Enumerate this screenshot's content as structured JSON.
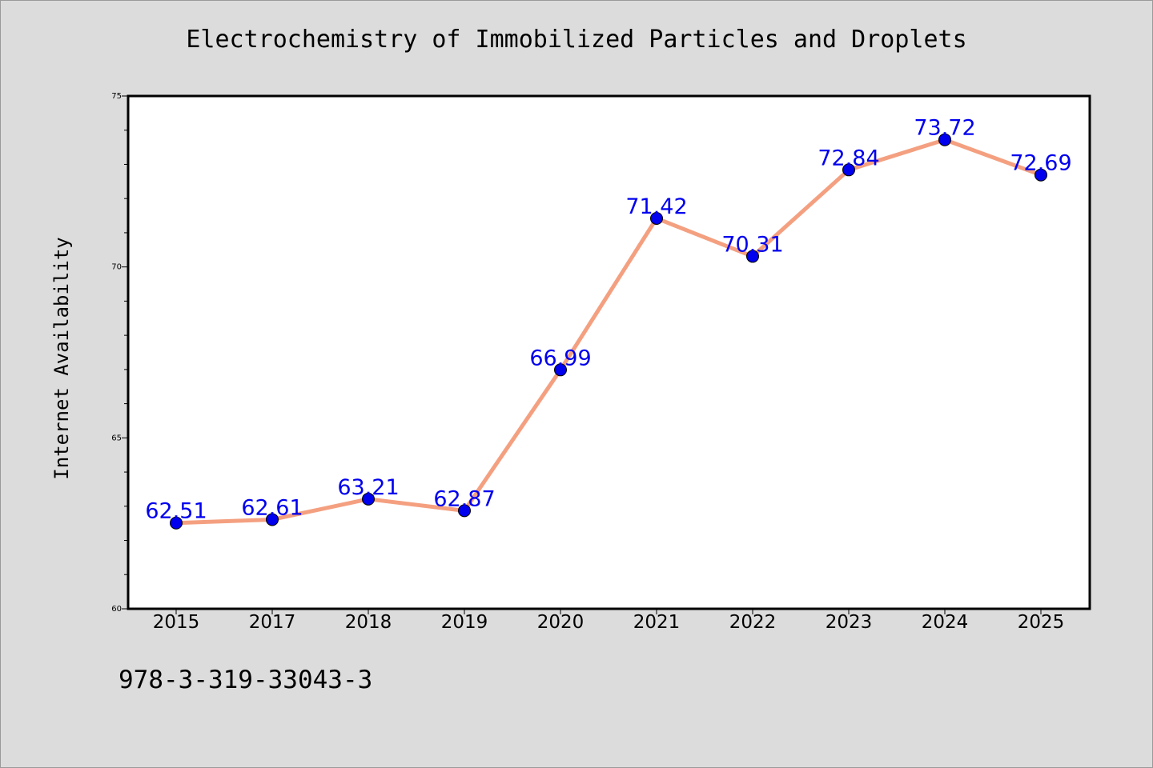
{
  "chart_data": {
    "type": "line",
    "title": "Electrochemistry of Immobilized Particles and Droplets",
    "xlabel": "",
    "ylabel": "Internet Availability",
    "categories": [
      "2015",
      "2017",
      "2018",
      "2019",
      "2020",
      "2021",
      "2022",
      "2023",
      "2024",
      "2025"
    ],
    "values": [
      62.51,
      62.61,
      63.21,
      62.87,
      66.99,
      71.42,
      70.31,
      72.84,
      73.72,
      72.69
    ],
    "value_labels": [
      "62.51",
      "62.61",
      "63.21",
      "62.87",
      "66.99",
      "71.42",
      "70.31",
      "72.84",
      "73.72",
      "72.69"
    ],
    "ylim": [
      60,
      75
    ],
    "yticks": [
      "60",
      "65",
      "70",
      "75"
    ],
    "grid": false,
    "line_color": "#f4a080",
    "marker_color": "#0000ee",
    "label_color": "#0000ee"
  },
  "footer_text": "978-3-319-33043-3"
}
